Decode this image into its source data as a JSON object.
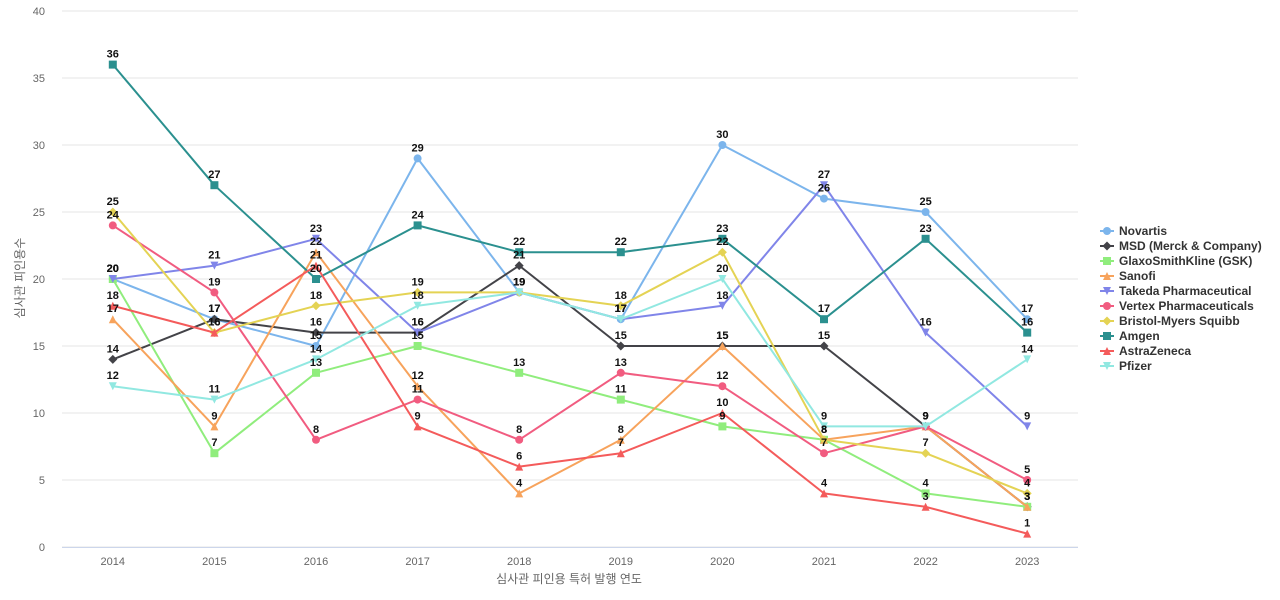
{
  "chart_data": {
    "type": "line",
    "xlabel": "심사관 피인용 특허 발행 연도",
    "ylabel": "심사관 피인용수",
    "x": [
      "2014",
      "2015",
      "2016",
      "2017",
      "2018",
      "2019",
      "2020",
      "2021",
      "2022",
      "2023"
    ],
    "ylim": [
      0,
      40
    ],
    "yticks": [
      0,
      5,
      10,
      15,
      20,
      25,
      30,
      35,
      40
    ],
    "grid": true,
    "legend_position": "right",
    "series": [
      {
        "name": "Novartis",
        "color": "#7cb5ec",
        "marker": "circle",
        "values": [
          20,
          17,
          15,
          29,
          19,
          17,
          30,
          26,
          25,
          17
        ]
      },
      {
        "name": "MSD (Merck & Company)",
        "color": "#434348",
        "marker": "diamond",
        "values": [
          14,
          17,
          16,
          16,
          21,
          15,
          15,
          15,
          9,
          3
        ]
      },
      {
        "name": "GlaxoSmithKline (GSK)",
        "color": "#90ed7d",
        "marker": "square",
        "values": [
          20,
          7,
          13,
          15,
          13,
          11,
          9,
          8,
          4,
          3
        ]
      },
      {
        "name": "Sanofi",
        "color": "#f7a35c",
        "marker": "triangle",
        "values": [
          17,
          9,
          22,
          12,
          4,
          8,
          15,
          8,
          9,
          3
        ]
      },
      {
        "name": "Takeda Pharmaceutical",
        "color": "#8085e9",
        "marker": "triangle-down",
        "values": [
          20,
          21,
          23,
          16,
          19,
          17,
          18,
          27,
          16,
          9
        ]
      },
      {
        "name": "Vertex Pharmaceuticals",
        "color": "#f15c80",
        "marker": "circle",
        "values": [
          24,
          19,
          8,
          11,
          8,
          13,
          12,
          7,
          9,
          5
        ]
      },
      {
        "name": "Bristol-Myers Squibb",
        "color": "#e4d354",
        "marker": "diamond",
        "values": [
          25,
          16,
          18,
          19,
          19,
          18,
          22,
          8,
          7,
          4
        ]
      },
      {
        "name": "Amgen",
        "color": "#2b908f",
        "marker": "square",
        "values": [
          36,
          27,
          20,
          24,
          22,
          22,
          23,
          17,
          23,
          16
        ]
      },
      {
        "name": "AstraZeneca",
        "color": "#f45b5b",
        "marker": "triangle",
        "values": [
          18,
          16,
          21,
          9,
          6,
          7,
          10,
          4,
          3,
          1
        ]
      },
      {
        "name": "Pfizer",
        "color": "#91e8e1",
        "marker": "triangle-down",
        "values": [
          12,
          11,
          14,
          18,
          19,
          17,
          20,
          9,
          9,
          14
        ]
      }
    ]
  }
}
